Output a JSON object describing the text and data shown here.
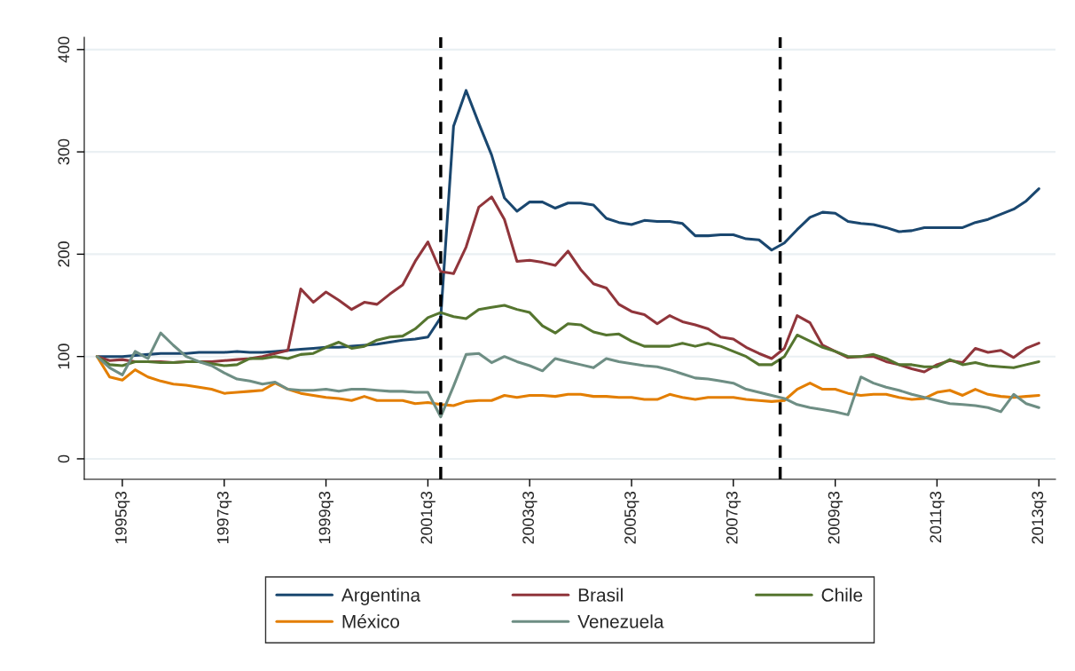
{
  "chart_data": {
    "type": "line",
    "x": [
      "1995-01",
      "1995-04",
      "1995-07",
      "1995-10",
      "1996-01",
      "1996-04",
      "1996-07",
      "1996-10",
      "1997-01",
      "1997-04",
      "1997-07",
      "1997-10",
      "1998-01",
      "1998-04",
      "1998-07",
      "1998-10",
      "1999-01",
      "1999-04",
      "1999-07",
      "1999-10",
      "2000-01",
      "2000-04",
      "2000-07",
      "2000-10",
      "2001-01",
      "2001-04",
      "2001-07",
      "2001-10",
      "2002-01",
      "2002-04",
      "2002-07",
      "2002-10",
      "2003-01",
      "2003-04",
      "2003-07",
      "2003-10",
      "2004-01",
      "2004-04",
      "2004-07",
      "2004-10",
      "2005-01",
      "2005-04",
      "2005-07",
      "2005-10",
      "2006-01",
      "2006-04",
      "2006-07",
      "2006-10",
      "2007-01",
      "2007-04",
      "2007-07",
      "2007-10",
      "2008-01",
      "2008-04",
      "2008-07",
      "2008-10",
      "2009-01",
      "2009-04",
      "2009-07",
      "2009-10",
      "2010-01",
      "2010-04",
      "2010-07",
      "2010-10",
      "2011-01",
      "2011-04",
      "2011-07",
      "2011-10",
      "2012-01",
      "2012-04",
      "2012-07",
      "2012-10",
      "2013-01",
      "2013-04",
      "2013-07"
    ],
    "series": [
      {
        "name": "Argentina",
        "color": "#1a476f",
        "values": [
          100,
          100,
          100,
          101,
          102,
          103,
          103,
          103,
          104,
          104,
          104,
          105,
          104,
          104,
          105,
          106,
          107,
          108,
          109,
          109,
          110,
          111,
          112,
          114,
          116,
          117,
          119,
          138,
          325,
          360,
          328,
          297,
          255,
          242,
          251,
          251,
          245,
          250,
          250,
          248,
          235,
          231,
          229,
          233,
          232,
          232,
          230,
          218,
          218,
          219,
          219,
          215,
          214,
          204,
          211,
          224,
          236,
          241,
          240,
          232,
          230,
          229,
          226,
          222,
          223,
          226,
          226,
          226,
          226,
          231,
          234,
          239,
          244,
          252,
          264
        ]
      },
      {
        "name": "Brasil",
        "color": "#90353b",
        "values": [
          100,
          96,
          97,
          95,
          95,
          95,
          94,
          95,
          95,
          95,
          96,
          97,
          98,
          100,
          103,
          106,
          166,
          153,
          163,
          155,
          146,
          153,
          151,
          161,
          170,
          193,
          212,
          183,
          181,
          207,
          246,
          256,
          234,
          193,
          194,
          192,
          189,
          203,
          185,
          171,
          167,
          151,
          144,
          141,
          132,
          140,
          134,
          131,
          127,
          119,
          117,
          109,
          103,
          98,
          108,
          140,
          133,
          111,
          105,
          99,
          100,
          100,
          95,
          92,
          88,
          85,
          92,
          96,
          94,
          108,
          104,
          106,
          99,
          108,
          113
        ]
      },
      {
        "name": "Chile",
        "color": "#55752f",
        "values": [
          100,
          92,
          91,
          95,
          95,
          94,
          94,
          95,
          95,
          93,
          91,
          92,
          98,
          98,
          100,
          98,
          102,
          103,
          109,
          114,
          108,
          110,
          116,
          119,
          120,
          127,
          138,
          143,
          139,
          137,
          146,
          148,
          150,
          146,
          143,
          130,
          123,
          132,
          131,
          124,
          121,
          122,
          115,
          110,
          110,
          110,
          113,
          110,
          113,
          110,
          105,
          100,
          92,
          92,
          100,
          121,
          115,
          109,
          105,
          100,
          100,
          102,
          98,
          92,
          92,
          90,
          90,
          97,
          92,
          94,
          91,
          90,
          89,
          92,
          95
        ]
      },
      {
        "name": "México",
        "color": "#e37e00",
        "values": [
          100,
          80,
          77,
          87,
          80,
          76,
          73,
          72,
          70,
          68,
          64,
          65,
          66,
          67,
          74,
          68,
          64,
          62,
          60,
          59,
          57,
          61,
          57,
          57,
          57,
          54,
          55,
          53,
          52,
          56,
          57,
          57,
          62,
          60,
          62,
          62,
          61,
          63,
          63,
          61,
          61,
          60,
          60,
          58,
          58,
          63,
          60,
          58,
          60,
          60,
          60,
          58,
          57,
          56,
          57,
          68,
          74,
          68,
          68,
          64,
          62,
          63,
          63,
          60,
          58,
          59,
          65,
          67,
          62,
          68,
          63,
          61,
          60,
          61,
          62
        ]
      },
      {
        "name": "Venezuela",
        "color": "#6e8e84",
        "values": [
          100,
          89,
          82,
          105,
          98,
          123,
          111,
          100,
          95,
          91,
          84,
          78,
          76,
          73,
          75,
          68,
          67,
          67,
          68,
          66,
          68,
          68,
          67,
          66,
          66,
          65,
          65,
          41,
          71,
          102,
          103,
          94,
          100,
          95,
          91,
          86,
          98,
          95,
          92,
          89,
          98,
          95,
          93,
          91,
          90,
          87,
          83,
          79,
          78,
          76,
          74,
          68,
          65,
          62,
          59,
          53,
          50,
          48,
          46,
          43,
          80,
          74,
          70,
          67,
          63,
          60,
          57,
          54,
          53,
          52,
          50,
          46,
          63,
          54,
          50
        ]
      }
    ],
    "xlim": [
      "1994-10-01",
      "2013-10-28"
    ],
    "ylim": [
      -20,
      412
    ],
    "xticks": [
      {
        "value": "1995-07",
        "label": "1995q3"
      },
      {
        "value": "1997-07",
        "label": "1997q3"
      },
      {
        "value": "1999-07",
        "label": "1999q3"
      },
      {
        "value": "2001-07",
        "label": "2001q3"
      },
      {
        "value": "2003-07",
        "label": "2003q3"
      },
      {
        "value": "2005-07",
        "label": "2005q3"
      },
      {
        "value": "2007-07",
        "label": "2007q3"
      },
      {
        "value": "2009-07",
        "label": "2009q3"
      },
      {
        "value": "2011-07",
        "label": "2011q3"
      },
      {
        "value": "2013-07",
        "label": "2013q3"
      }
    ],
    "yticks": [
      0,
      100,
      200,
      300,
      400
    ],
    "ref_lines": [
      {
        "axis": "x",
        "value": "2001-10",
        "color": "#000000",
        "line_style": "dashed"
      },
      {
        "axis": "x",
        "value": "2008-06-01",
        "color": "#000000",
        "line_style": "dashed"
      }
    ],
    "grid": "y",
    "legend": "bottom",
    "marker": "none",
    "line_style": "solid"
  }
}
